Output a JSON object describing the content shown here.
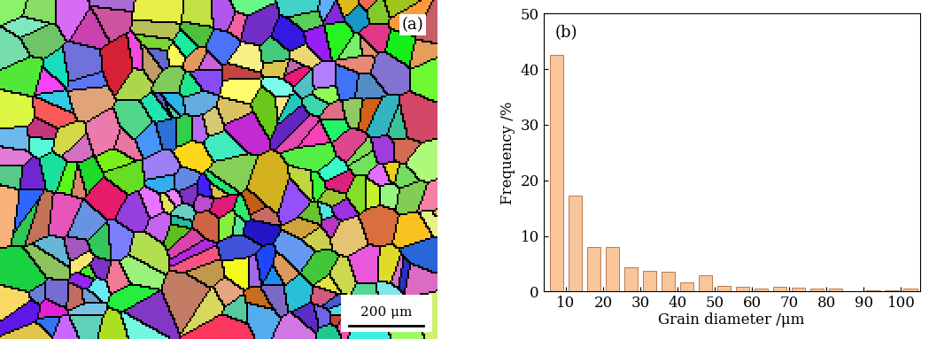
{
  "image_panel": {
    "panel_label": "(a)",
    "scale_bar": "200 μm"
  },
  "chart_data": {
    "type": "bar",
    "panel_label": "(b)",
    "x_label": "Grain diameter /μm",
    "y_label": "Frequency /%",
    "x": [
      7.5,
      12.5,
      17.5,
      22.5,
      27.5,
      32.5,
      37.5,
      42.5,
      47.5,
      52.5,
      57.5,
      62.5,
      67.5,
      72.5,
      77.5,
      82.5,
      87.5,
      92.5,
      97.5,
      102.5
    ],
    "values": [
      42.5,
      17.2,
      8.0,
      8.0,
      4.4,
      3.7,
      3.5,
      1.6,
      3.0,
      1.0,
      0.8,
      0.6,
      0.9,
      0.7,
      0.5,
      0.6,
      0.0,
      0.2,
      0.2,
      0.6
    ],
    "color": "#f9c59a",
    "xlim": [
      4,
      105
    ],
    "xticks": [
      10,
      20,
      30,
      40,
      50,
      60,
      70,
      80,
      90,
      100
    ],
    "ylim": [
      0,
      50
    ],
    "yticks": [
      0,
      10,
      20,
      30,
      40,
      50
    ],
    "grid": false
  }
}
